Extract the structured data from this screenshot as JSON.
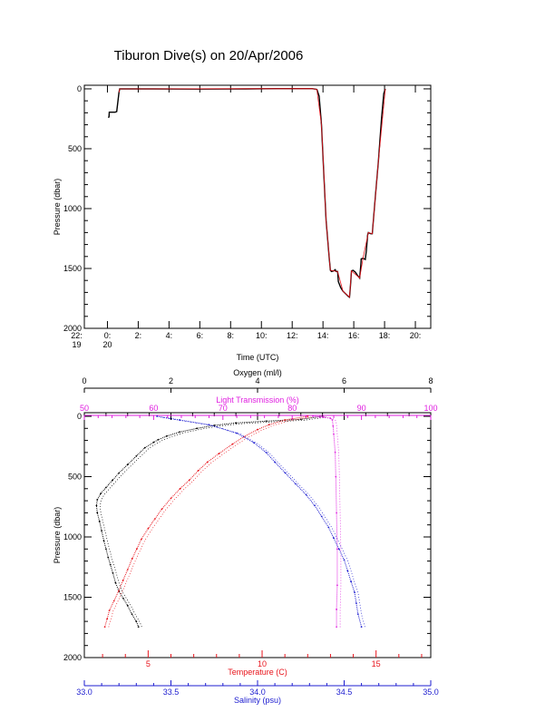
{
  "title": "Tiburon Dive(s) on 20/Apr/2006",
  "colors": {
    "black": "#000000",
    "red": "#e8141c",
    "magenta": "#e020e0",
    "blue": "#1c1cd0"
  },
  "chart_data": [
    {
      "type": "line",
      "name": "time-series",
      "xlabel": "Time (UTC)",
      "ylabel": "Pressure (dbar)",
      "xlim": [
        22.5,
        45
      ],
      "ylim": [
        2000,
        -30
      ],
      "x_ticks": [
        {
          "value": 22,
          "label": "22:",
          "sublabel": "19"
        },
        {
          "value": 24,
          "label": "0:",
          "sublabel": "20"
        },
        {
          "value": 26,
          "label": "2:",
          "sublabel": ""
        },
        {
          "value": 28,
          "label": "4:",
          "sublabel": ""
        },
        {
          "value": 30,
          "label": "6:",
          "sublabel": ""
        },
        {
          "value": 32,
          "label": "8:",
          "sublabel": ""
        },
        {
          "value": 34,
          "label": "10:",
          "sublabel": ""
        },
        {
          "value": 36,
          "label": "12:",
          "sublabel": ""
        },
        {
          "value": 38,
          "label": "14:",
          "sublabel": ""
        },
        {
          "value": 40,
          "label": "16:",
          "sublabel": ""
        },
        {
          "value": 42,
          "label": "18:",
          "sublabel": ""
        },
        {
          "value": 44,
          "label": "20:",
          "sublabel": ""
        }
      ],
      "y_ticks": [
        0,
        500,
        1000,
        1500,
        2000
      ],
      "series": [
        {
          "color": "black",
          "points": [
            [
              24.05,
              240
            ],
            [
              24.1,
              235
            ],
            [
              24.12,
              195
            ],
            [
              24.5,
              195
            ],
            [
              24.6,
              190
            ],
            [
              24.75,
              30
            ],
            [
              24.8,
              0
            ],
            [
              25.5,
              0
            ],
            [
              27,
              0
            ],
            [
              30,
              2
            ],
            [
              33,
              0
            ],
            [
              35,
              -2
            ],
            [
              37.3,
              -2
            ],
            [
              37.6,
              5
            ],
            [
              37.75,
              60
            ],
            [
              37.9,
              300
            ],
            [
              38.05,
              700
            ],
            [
              38.2,
              1100
            ],
            [
              38.4,
              1400
            ],
            [
              38.48,
              1515
            ],
            [
              38.55,
              1525
            ],
            [
              38.7,
              1520
            ],
            [
              38.8,
              1510
            ],
            [
              38.85,
              1525
            ],
            [
              38.95,
              1525
            ],
            [
              39.0,
              1610
            ],
            [
              39.15,
              1660
            ],
            [
              39.3,
              1690
            ],
            [
              39.5,
              1715
            ],
            [
              39.65,
              1735
            ],
            [
              39.72,
              1740
            ],
            [
              39.78,
              1650
            ],
            [
              39.85,
              1520
            ],
            [
              39.95,
              1515
            ],
            [
              40.1,
              1530
            ],
            [
              40.25,
              1560
            ],
            [
              40.38,
              1580
            ],
            [
              40.45,
              1480
            ],
            [
              40.48,
              1420
            ],
            [
              40.6,
              1415
            ],
            [
              40.75,
              1425
            ],
            [
              40.82,
              1350
            ],
            [
              40.9,
              1220
            ],
            [
              40.95,
              1200
            ],
            [
              41.1,
              1210
            ],
            [
              41.2,
              1210
            ],
            [
              41.4,
              900
            ],
            [
              41.6,
              600
            ],
            [
              41.8,
              250
            ],
            [
              41.95,
              40
            ],
            [
              42.05,
              0
            ]
          ]
        },
        {
          "color": "red",
          "points": [
            [
              24.75,
              30
            ],
            [
              24.8,
              0
            ],
            [
              37.3,
              -2
            ],
            [
              37.6,
              5
            ],
            [
              37.9,
              300
            ],
            [
              38.2,
              1100
            ],
            [
              38.48,
              1515
            ],
            [
              38.95,
              1525
            ],
            [
              39.3,
              1690
            ],
            [
              39.72,
              1740
            ],
            [
              39.85,
              1520
            ],
            [
              40.38,
              1580
            ],
            [
              40.6,
              1415
            ],
            [
              40.95,
              1200
            ],
            [
              41.2,
              1210
            ],
            [
              41.6,
              600
            ],
            [
              42.05,
              0
            ]
          ]
        }
      ]
    },
    {
      "type": "scatter",
      "name": "profiles",
      "ylabel": "Pressure (dbar)",
      "ylim": [
        2000,
        -30
      ],
      "y_ticks": [
        0,
        500,
        1000,
        1500,
        2000
      ],
      "axes": [
        {
          "id": "oxygen",
          "label": "Oxygen (ml/l)",
          "range": [
            0,
            8
          ],
          "ticks": [
            0,
            2,
            4,
            6,
            8
          ],
          "color": "black",
          "position": "top-1"
        },
        {
          "id": "transmission",
          "label": "Light Transmission (%)",
          "range": [
            50,
            100
          ],
          "ticks": [
            50,
            60,
            70,
            80,
            90,
            100
          ],
          "color": "magenta",
          "position": "top-2"
        },
        {
          "id": "temperature",
          "label": "Temperature (C)",
          "range": [
            2.2,
            17.4
          ],
          "ticks": [
            5,
            10,
            15
          ],
          "color": "red",
          "position": "bottom-1"
        },
        {
          "id": "salinity",
          "label": "Salinity (psu)",
          "range": [
            33.0,
            35.0
          ],
          "ticks": [
            33.0,
            33.5,
            34.0,
            34.5,
            35.0
          ],
          "tick_labels": [
            "33.0",
            "33.5",
            "34.0",
            "34.5",
            "35.0"
          ],
          "color": "blue",
          "position": "bottom-2"
        }
      ],
      "series": [
        {
          "axis": "oxygen",
          "color": "black",
          "points": [
            [
              5.5,
              0
            ],
            [
              5.0,
              25
            ],
            [
              4.2,
              40
            ],
            [
              3.5,
              55
            ],
            [
              3.0,
              75
            ],
            [
              2.6,
              100
            ],
            [
              2.2,
              130
            ],
            [
              1.9,
              165
            ],
            [
              1.7,
              195
            ],
            [
              1.6,
              215
            ],
            [
              1.4,
              260
            ],
            [
              1.2,
              330
            ],
            [
              1.0,
              400
            ],
            [
              0.8,
              470
            ],
            [
              0.65,
              530
            ],
            [
              0.5,
              590
            ],
            [
              0.38,
              640
            ],
            [
              0.3,
              690
            ],
            [
              0.28,
              740
            ],
            [
              0.3,
              800
            ],
            [
              0.35,
              870
            ],
            [
              0.4,
              950
            ],
            [
              0.45,
              1030
            ],
            [
              0.5,
              1100
            ],
            [
              0.55,
              1170
            ],
            [
              0.6,
              1230
            ],
            [
              0.66,
              1300
            ],
            [
              0.72,
              1380
            ],
            [
              0.8,
              1450
            ],
            [
              0.9,
              1510
            ],
            [
              1.0,
              1570
            ],
            [
              1.1,
              1640
            ],
            [
              1.2,
              1700
            ],
            [
              1.25,
              1745
            ]
          ]
        },
        {
          "axis": "transmission",
          "color": "magenta",
          "points": [
            [
              83,
              0
            ],
            [
              84.5,
              5
            ],
            [
              85.5,
              15
            ],
            [
              85.8,
              30
            ],
            [
              85.9,
              80
            ],
            [
              86.0,
              150
            ],
            [
              86.2,
              300
            ],
            [
              86.3,
              500
            ],
            [
              86.4,
              800
            ],
            [
              86.5,
              1100
            ],
            [
              86.5,
              1400
            ],
            [
              86.4,
              1600
            ],
            [
              86.4,
              1745
            ]
          ]
        },
        {
          "axis": "temperature",
          "color": "red",
          "points": [
            [
              12.0,
              0
            ],
            [
              11.0,
              30
            ],
            [
              10.3,
              70
            ],
            [
              9.8,
              110
            ],
            [
              9.2,
              170
            ],
            [
              8.7,
              230
            ],
            [
              8.1,
              310
            ],
            [
              7.6,
              380
            ],
            [
              7.2,
              450
            ],
            [
              6.8,
              530
            ],
            [
              6.4,
              600
            ],
            [
              6.0,
              680
            ],
            [
              5.6,
              770
            ],
            [
              5.3,
              850
            ],
            [
              5.0,
              930
            ],
            [
              4.7,
              1020
            ],
            [
              4.5,
              1100
            ],
            [
              4.3,
              1180
            ],
            [
              4.1,
              1270
            ],
            [
              3.9,
              1360
            ],
            [
              3.7,
              1450
            ],
            [
              3.5,
              1530
            ],
            [
              3.3,
              1610
            ],
            [
              3.2,
              1680
            ],
            [
              3.1,
              1745
            ]
          ]
        },
        {
          "axis": "salinity",
          "color": "blue",
          "points": [
            [
              33.42,
              0
            ],
            [
              33.55,
              30
            ],
            [
              33.72,
              70
            ],
            [
              33.88,
              140
            ],
            [
              33.98,
              220
            ],
            [
              34.05,
              300
            ],
            [
              34.1,
              380
            ],
            [
              34.16,
              470
            ],
            [
              34.22,
              560
            ],
            [
              34.28,
              650
            ],
            [
              34.33,
              740
            ],
            [
              34.37,
              830
            ],
            [
              34.41,
              920
            ],
            [
              34.44,
              1010
            ],
            [
              34.47,
              1100
            ],
            [
              34.5,
              1190
            ],
            [
              34.52,
              1280
            ],
            [
              34.54,
              1370
            ],
            [
              34.56,
              1460
            ],
            [
              34.57,
              1550
            ],
            [
              34.58,
              1640
            ],
            [
              34.6,
              1745
            ]
          ]
        }
      ]
    }
  ]
}
